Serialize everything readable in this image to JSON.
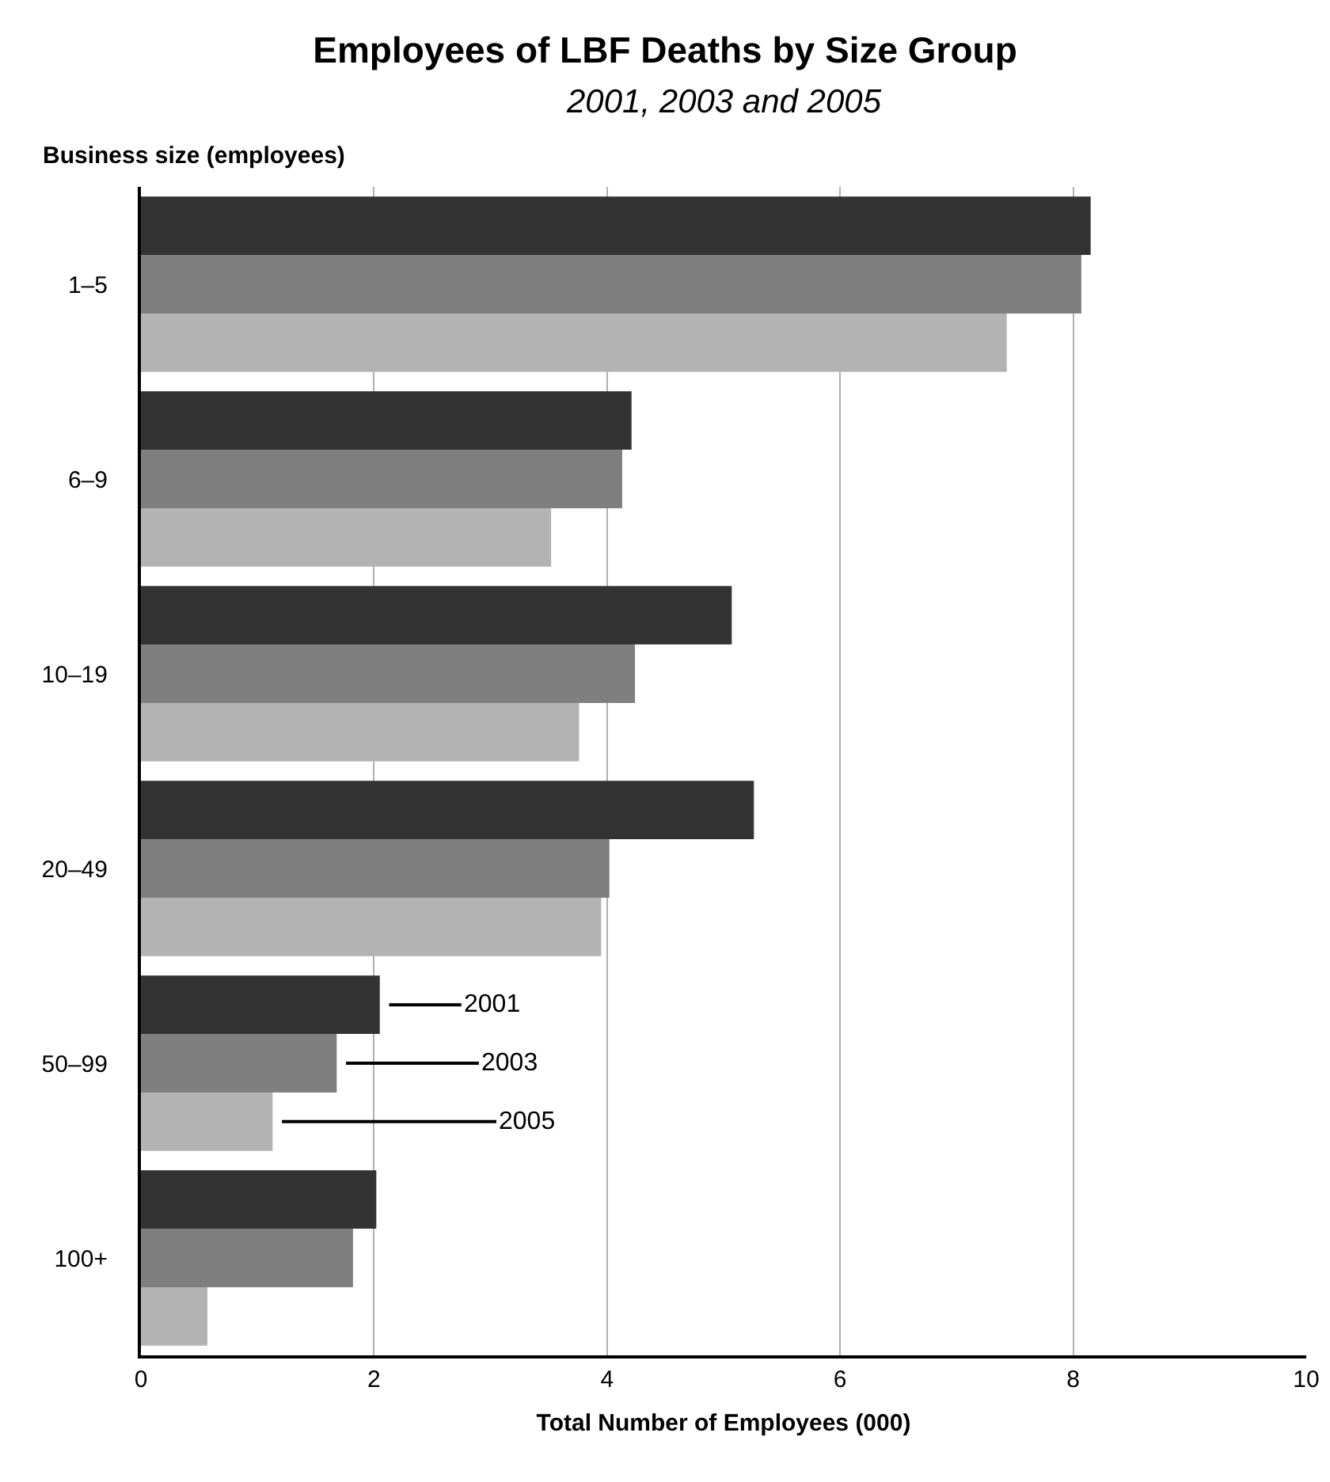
{
  "chart_data": {
    "type": "bar",
    "orientation": "horizontal",
    "title": "Employees of LBF Deaths by Size Group",
    "subtitle": "2001, 2003 and 2005",
    "ylabel": "Business size (employees)",
    "xlabel": "Total Number of Employees (000)",
    "categories": [
      "1–5",
      "6–9",
      "10–19",
      "20–49",
      "50–99",
      "100+"
    ],
    "series": [
      {
        "name": "2001",
        "color": "#333333",
        "values": [
          8.15,
          4.21,
          5.07,
          5.26,
          2.05,
          2.02
        ]
      },
      {
        "name": "2003",
        "color": "#7f7f7f",
        "values": [
          8.07,
          4.13,
          4.24,
          4.02,
          1.68,
          1.82
        ]
      },
      {
        "name": "2005",
        "color": "#b3b3b3",
        "values": [
          7.43,
          3.52,
          3.76,
          3.95,
          1.13,
          0.57
        ]
      }
    ],
    "xlim": [
      0,
      10
    ],
    "xticks": [
      0,
      2,
      4,
      6,
      8,
      10
    ],
    "grid": "x"
  }
}
